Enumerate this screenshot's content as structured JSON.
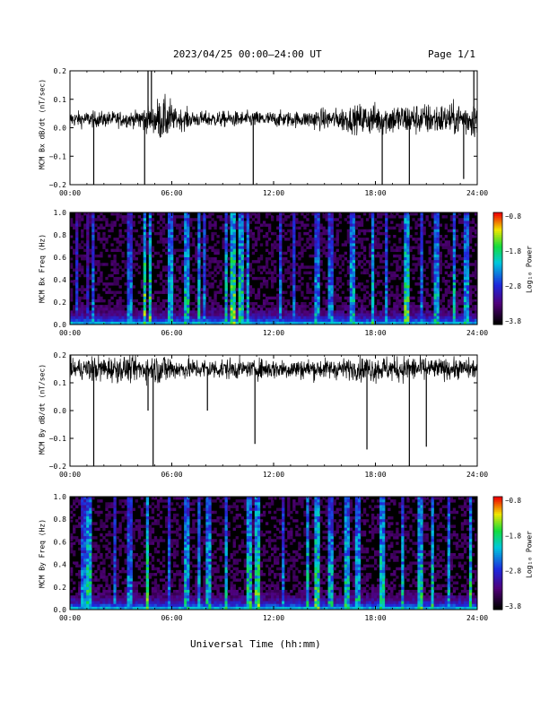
{
  "header": {
    "title": "2023/04/25  00:00–24:00 UT",
    "page": "Page 1/1"
  },
  "footer": {
    "xlabel": "Universal Time (hh:mm)"
  },
  "colors": {
    "trace": "#000000",
    "axis": "#000000",
    "background": "#ffffff"
  },
  "chart_data": [
    {
      "type": "line",
      "ylabel": "MCM Bx dB/dt (nT/sec)",
      "xlim": [
        0,
        24
      ],
      "ylim": [
        -0.2,
        0.2
      ],
      "xticks": [
        "00:00",
        "06:00",
        "12:00",
        "18:00",
        "24:00"
      ],
      "yticks": [
        "0.2",
        "0.1",
        "0.0",
        "−0.1",
        "−0.2"
      ],
      "baseline": 0.03,
      "noise_by_hour": [
        0.03,
        0.03,
        0.03,
        0.03,
        0.05,
        0.08,
        0.04,
        0.03,
        0.03,
        0.03,
        0.03,
        0.03,
        0.03,
        0.03,
        0.04,
        0.04,
        0.05,
        0.06,
        0.06,
        0.06,
        0.06,
        0.06,
        0.06,
        0.07
      ],
      "spikes": [
        {
          "t": 1.4,
          "v": -0.2
        },
        {
          "t": 4.4,
          "v": -0.2
        },
        {
          "t": 4.6,
          "v": 0.2
        },
        {
          "t": 4.8,
          "v": 0.2
        },
        {
          "t": 10.8,
          "v": -0.2
        },
        {
          "t": 18.4,
          "v": -0.2
        },
        {
          "t": 20.0,
          "v": -0.2
        },
        {
          "t": 23.2,
          "v": -0.18
        },
        {
          "t": 23.8,
          "v": 0.2
        }
      ]
    },
    {
      "type": "heatmap",
      "ylabel": "MCM Bx Freq (Hz)",
      "xlim": [
        0,
        24
      ],
      "ylim": [
        0.0,
        1.0
      ],
      "xticks": [
        "00:00",
        "06:00",
        "12:00",
        "18:00",
        "24:00"
      ],
      "yticks": [
        "1.0",
        "0.8",
        "0.6",
        "0.4",
        "0.2",
        "0.0"
      ],
      "colorbar": {
        "label": "Log₁₀ Power",
        "ticks": [
          "−0.8",
          "−1.8",
          "−2.8",
          "−3.8"
        ],
        "range": [
          -3.8,
          -0.8
        ]
      },
      "bursts": [
        {
          "t": 0.4,
          "p": 0.45
        },
        {
          "t": 1.0,
          "p": 0.4
        },
        {
          "t": 1.4,
          "p": 0.6
        },
        {
          "t": 3.5,
          "p": 0.6
        },
        {
          "t": 4.4,
          "p": 0.9
        },
        {
          "t": 4.7,
          "p": 0.85
        },
        {
          "t": 5.9,
          "p": 0.7
        },
        {
          "t": 6.9,
          "p": 0.75
        },
        {
          "t": 7.6,
          "p": 0.7
        },
        {
          "t": 7.9,
          "p": 0.6
        },
        {
          "t": 9.2,
          "p": 0.75
        },
        {
          "t": 9.6,
          "p": 0.9
        },
        {
          "t": 10.1,
          "p": 0.8
        },
        {
          "t": 10.5,
          "p": 0.7
        },
        {
          "t": 12.4,
          "p": 0.6
        },
        {
          "t": 13.2,
          "p": 0.55
        },
        {
          "t": 14.6,
          "p": 0.65
        },
        {
          "t": 15.4,
          "p": 0.6
        },
        {
          "t": 16.6,
          "p": 0.7
        },
        {
          "t": 17.8,
          "p": 0.75
        },
        {
          "t": 18.6,
          "p": 0.6
        },
        {
          "t": 19.8,
          "p": 0.85
        },
        {
          "t": 20.7,
          "p": 0.6
        },
        {
          "t": 21.6,
          "p": 0.7
        },
        {
          "t": 22.6,
          "p": 0.75
        },
        {
          "t": 23.4,
          "p": 0.7
        }
      ]
    },
    {
      "type": "line",
      "ylabel": "MCM By dB/dt (nT/sec)",
      "xlim": [
        0,
        24
      ],
      "ylim": [
        -0.2,
        0.2
      ],
      "xticks": [
        "00:00",
        "06:00",
        "12:00",
        "18:00",
        "24:00"
      ],
      "yticks": [
        "0.2",
        "0.1",
        "0.0",
        "−0.1",
        "−0.2"
      ],
      "baseline": 0.15,
      "noise_by_hour": [
        0.04,
        0.05,
        0.05,
        0.05,
        0.05,
        0.06,
        0.04,
        0.04,
        0.04,
        0.04,
        0.03,
        0.04,
        0.04,
        0.04,
        0.04,
        0.04,
        0.04,
        0.05,
        0.05,
        0.05,
        0.05,
        0.04,
        0.04,
        0.04
      ],
      "spikes": [
        {
          "t": 1.4,
          "v": -0.2
        },
        {
          "t": 4.6,
          "v": 0.0
        },
        {
          "t": 4.9,
          "v": -0.2
        },
        {
          "t": 8.1,
          "v": 0.0
        },
        {
          "t": 10.9,
          "v": -0.12
        },
        {
          "t": 17.5,
          "v": -0.14
        },
        {
          "t": 20.0,
          "v": -0.2
        },
        {
          "t": 21.0,
          "v": -0.13
        }
      ]
    },
    {
      "type": "heatmap",
      "ylabel": "MCM By Freq (Hz)",
      "xlim": [
        0,
        24
      ],
      "ylim": [
        0.0,
        1.0
      ],
      "xticks": [
        "00:00",
        "06:00",
        "12:00",
        "18:00",
        "24:00"
      ],
      "yticks": [
        "1.0",
        "0.8",
        "0.6",
        "0.4",
        "0.2",
        "0.0"
      ],
      "colorbar": {
        "label": "Log₁₀ Power",
        "ticks": [
          "−0.8",
          "−1.8",
          "−2.8",
          "−3.8"
        ],
        "range": [
          -3.8,
          -0.8
        ]
      },
      "bursts": [
        {
          "t": 0.8,
          "p": 0.6
        },
        {
          "t": 1.1,
          "p": 0.8
        },
        {
          "t": 2.6,
          "p": 0.55
        },
        {
          "t": 3.5,
          "p": 0.6
        },
        {
          "t": 4.6,
          "p": 0.85
        },
        {
          "t": 5.8,
          "p": 0.6
        },
        {
          "t": 6.9,
          "p": 0.7
        },
        {
          "t": 7.6,
          "p": 0.65
        },
        {
          "t": 8.2,
          "p": 0.7
        },
        {
          "t": 9.2,
          "p": 0.75
        },
        {
          "t": 10.6,
          "p": 0.8
        },
        {
          "t": 11.0,
          "p": 0.85
        },
        {
          "t": 12.6,
          "p": 0.6
        },
        {
          "t": 14.0,
          "p": 0.75
        },
        {
          "t": 14.6,
          "p": 0.85
        },
        {
          "t": 15.4,
          "p": 0.7
        },
        {
          "t": 16.3,
          "p": 0.75
        },
        {
          "t": 17.0,
          "p": 0.7
        },
        {
          "t": 18.4,
          "p": 0.75
        },
        {
          "t": 19.6,
          "p": 0.7
        },
        {
          "t": 20.6,
          "p": 0.8
        },
        {
          "t": 21.4,
          "p": 0.75
        },
        {
          "t": 22.3,
          "p": 0.7
        },
        {
          "t": 23.6,
          "p": 0.8
        }
      ]
    }
  ]
}
